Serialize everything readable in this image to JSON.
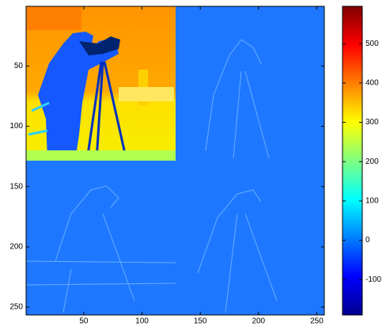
{
  "chart_data": {
    "type": "image",
    "colormap": "jet",
    "xlim": [
      0.5,
      256.5
    ],
    "ylim": [
      0.5,
      256.5
    ],
    "y_reversed": true,
    "xticks": [
      50,
      100,
      150,
      200,
      250
    ],
    "yticks": [
      50,
      100,
      150,
      200,
      250
    ],
    "clim": [
      -190,
      595
    ],
    "cticks": [
      -100,
      0,
      100,
      200,
      300,
      400,
      500
    ]
  }
}
